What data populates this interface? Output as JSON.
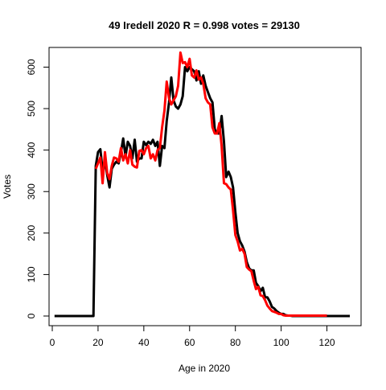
{
  "chart_data": {
    "type": "line",
    "title": "49 Iredell 2020 R = 0.998 votes = 29130",
    "xlabel": "Age in 2020",
    "ylabel": "Votes",
    "xlim": [
      0,
      130
    ],
    "ylim": [
      0,
      630
    ],
    "x_ticks": [
      0,
      20,
      40,
      60,
      80,
      100,
      120
    ],
    "y_ticks": [
      0,
      100,
      200,
      300,
      400,
      500,
      600
    ],
    "grid": false,
    "legend": "none",
    "series": [
      {
        "color": "#000000",
        "x": [
          1,
          18,
          19,
          20,
          21,
          22,
          23,
          24,
          25,
          26,
          27,
          28,
          29,
          30,
          31,
          32,
          33,
          34,
          35,
          36,
          37,
          38,
          39,
          40,
          41,
          42,
          43,
          44,
          45,
          46,
          47,
          48,
          49,
          50,
          51,
          52,
          53,
          54,
          55,
          56,
          57,
          58,
          59,
          60,
          61,
          62,
          63,
          64,
          65,
          66,
          67,
          68,
          69,
          70,
          71,
          72,
          73,
          74,
          75,
          76,
          77,
          78,
          79,
          80,
          81,
          82,
          83,
          84,
          85,
          86,
          87,
          88,
          89,
          90,
          91,
          92,
          93,
          94,
          95,
          96,
          97,
          98,
          99,
          100,
          101,
          102,
          103,
          104,
          105,
          106,
          107,
          108,
          109,
          110,
          111,
          112,
          113,
          114,
          115,
          116,
          117,
          118,
          119,
          120,
          121,
          122,
          123,
          124,
          125,
          126,
          127,
          128,
          129,
          130
        ],
        "values": [
          0,
          0,
          362,
          395,
          402,
          350,
          375,
          340,
          310,
          355,
          365,
          372,
          368,
          395,
          428,
          385,
          420,
          410,
          380,
          425,
          372,
          380,
          380,
          420,
          412,
          420,
          415,
          425,
          410,
          420,
          362,
          410,
          405,
          470,
          515,
          575,
          520,
          505,
          500,
          510,
          530,
          600,
          590,
          600,
          595,
          590,
          568,
          590,
          560,
          580,
          555,
          540,
          525,
          515,
          450,
          440,
          440,
          482,
          420,
          335,
          348,
          335,
          310,
          250,
          200,
          180,
          170,
          155,
          130,
          115,
          110,
          110,
          80,
          72,
          60,
          68,
          45,
          45,
          35,
          22,
          18,
          12,
          8,
          5,
          5,
          2,
          1,
          1,
          0,
          0,
          0,
          0,
          0,
          0,
          0,
          0,
          0,
          0,
          0,
          0,
          0,
          0,
          0,
          0,
          0,
          0,
          0,
          0,
          0,
          0,
          0,
          0,
          0,
          0
        ]
      },
      {
        "color": "#ff0000",
        "x": [
          19,
          20,
          21,
          22,
          23,
          24,
          25,
          26,
          27,
          28,
          29,
          30,
          31,
          32,
          33,
          34,
          35,
          36,
          37,
          38,
          39,
          40,
          41,
          42,
          43,
          44,
          45,
          46,
          47,
          48,
          49,
          50,
          51,
          52,
          53,
          54,
          55,
          56,
          57,
          58,
          59,
          60,
          61,
          62,
          63,
          64,
          65,
          66,
          67,
          68,
          69,
          70,
          71,
          72,
          73,
          74,
          75,
          76,
          77,
          78,
          79,
          80,
          81,
          82,
          83,
          84,
          85,
          86,
          87,
          88,
          89,
          90,
          91,
          92,
          93,
          94,
          95,
          96,
          97,
          98,
          99,
          100,
          101,
          102,
          103,
          104,
          105,
          106,
          107,
          108,
          109,
          110,
          111,
          120
        ],
        "values": [
          355,
          368,
          382,
          320,
          395,
          345,
          330,
          362,
          382,
          380,
          372,
          405,
          375,
          390,
          368,
          400,
          365,
          360,
          358,
          398,
          400,
          390,
          405,
          410,
          380,
          390,
          375,
          400,
          405,
          455,
          495,
          565,
          525,
          510,
          520,
          530,
          555,
          635,
          610,
          612,
          600,
          620,
          580,
          575,
          592,
          570,
          575,
          560,
          525,
          515,
          510,
          455,
          440,
          440,
          465,
          410,
          320,
          318,
          310,
          305,
          255,
          195,
          180,
          158,
          162,
          150,
          118,
          112,
          108,
          85,
          65,
          70,
          50,
          48,
          38,
          25,
          18,
          12,
          10,
          8,
          5,
          5,
          2,
          1,
          1,
          1,
          1,
          1,
          1,
          1,
          1,
          1,
          1,
          1
        ]
      }
    ]
  }
}
